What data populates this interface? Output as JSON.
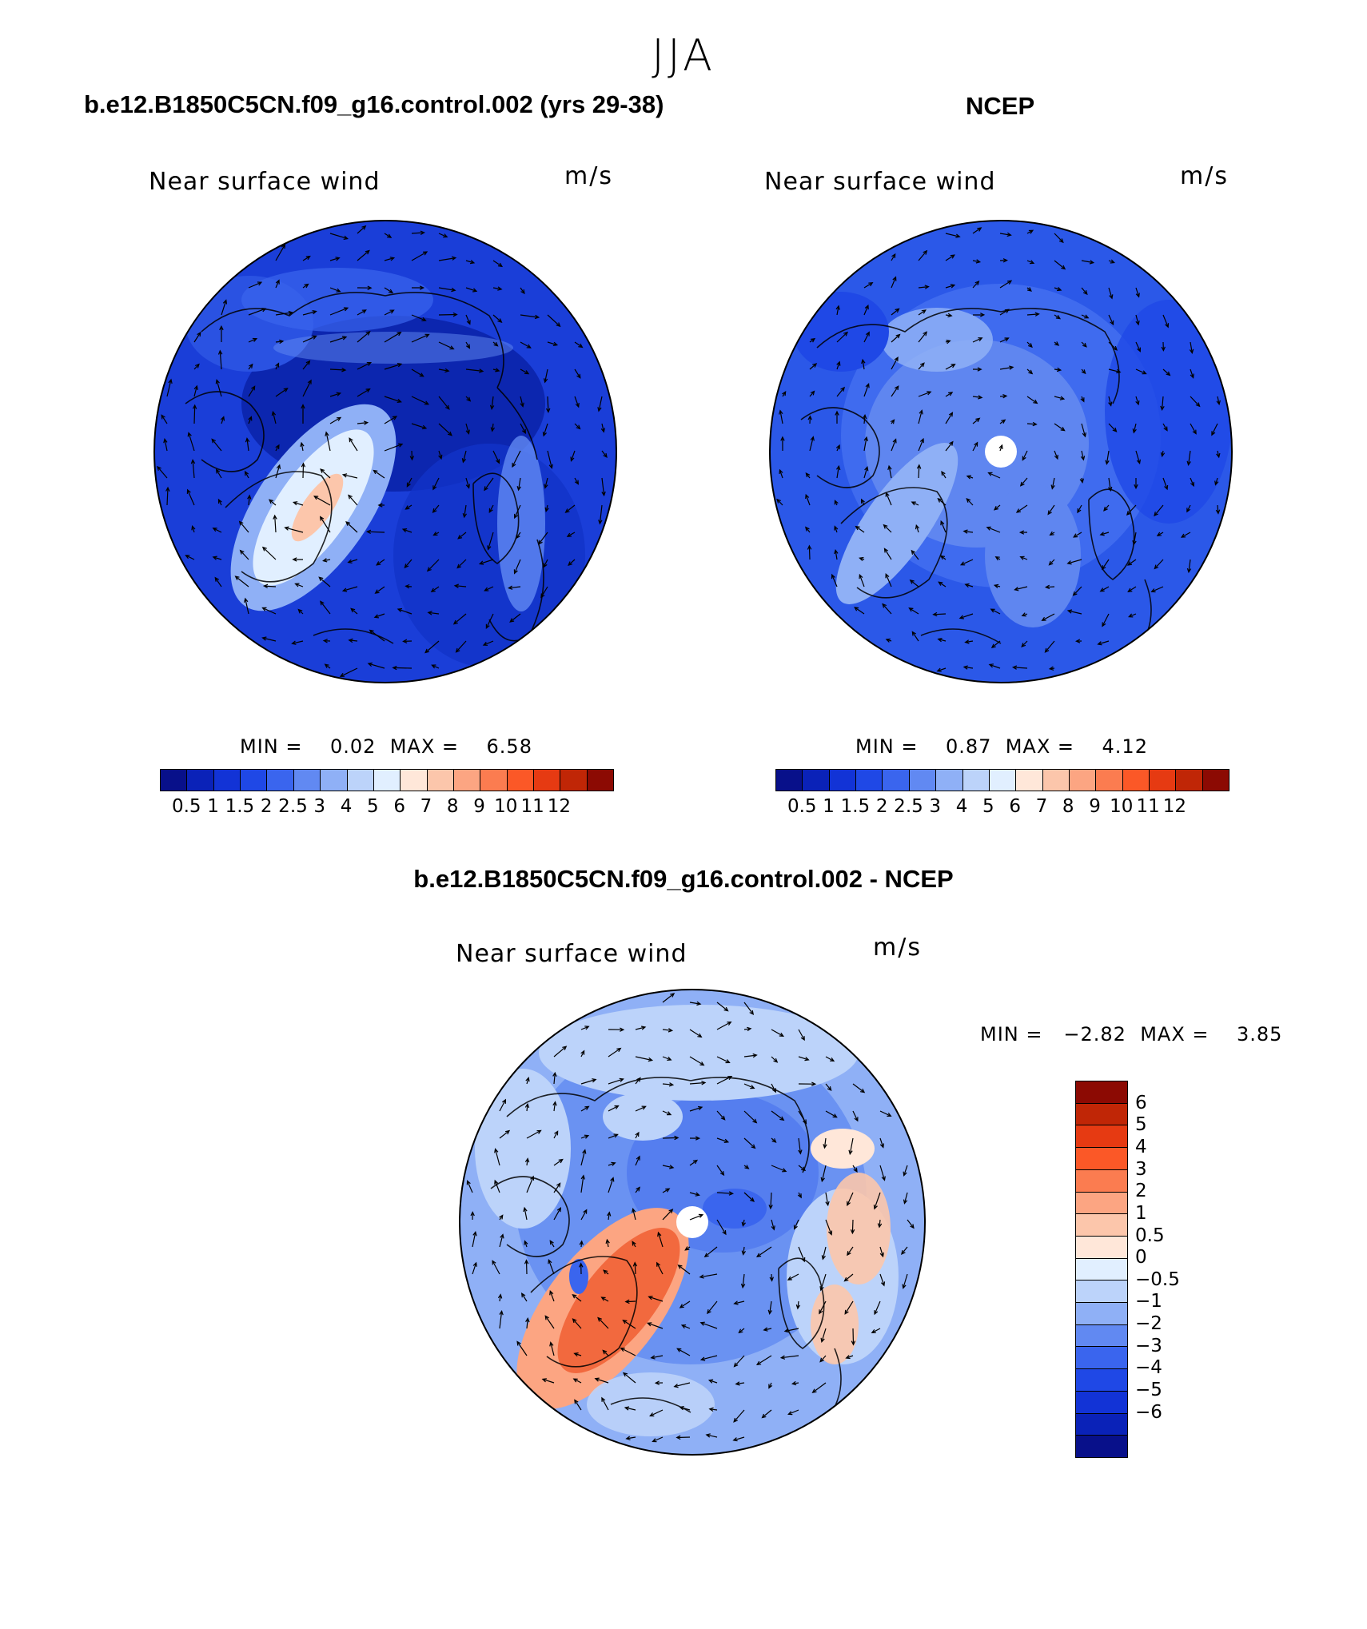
{
  "figure": {
    "title": "JJA"
  },
  "panels": {
    "model": {
      "title": "b.e12.B1850C5CN.f09_g16.control.002 (yrs 29-38)",
      "variable": "Near surface wind",
      "units": "m/s",
      "min_label": "MIN =",
      "min_value": "0.02",
      "max_label": "MAX =",
      "max_value": "6.58"
    },
    "obs": {
      "title": "NCEP",
      "variable": "Near surface wind",
      "units": "m/s",
      "min_label": "MIN =",
      "min_value": "0.87",
      "max_label": "MAX =",
      "max_value": "4.12"
    },
    "diff": {
      "title": "b.e12.B1850C5CN.f09_g16.control.002 - NCEP",
      "variable": "Near surface wind",
      "units": "m/s",
      "min_label": "MIN =",
      "min_value": "−2.82",
      "max_label": "MAX =",
      "max_value": "3.85"
    }
  },
  "colorbars": {
    "wind_speed": {
      "colors": [
        "#08108a",
        "#0a22b8",
        "#1233d6",
        "#1f48e6",
        "#3a65ee",
        "#6189f2",
        "#8fb0f6",
        "#bcd3fa",
        "#e1efff",
        "#ffe7d9",
        "#fcc6ab",
        "#fca582",
        "#fb7c50",
        "#fb5827",
        "#e63a12",
        "#c02606",
        "#8c0a03"
      ],
      "ticks": [
        "0.5",
        "1",
        "1.5",
        "2",
        "2.5",
        "3",
        "4",
        "5",
        "6",
        "7",
        "8",
        "9",
        "10",
        "11",
        "12"
      ]
    },
    "difference": {
      "colors": [
        "#8c0a03",
        "#c02606",
        "#e63a12",
        "#fb5827",
        "#fb7c50",
        "#fca582",
        "#fcc6ab",
        "#ffe7d9",
        "#e1efff",
        "#bcd3fa",
        "#8fb0f6",
        "#6189f2",
        "#3a65ee",
        "#1f48e6",
        "#1233d6",
        "#0a22b8",
        "#08108a"
      ],
      "ticks": [
        "6",
        "5",
        "4",
        "3",
        "2",
        "1",
        "0.5",
        "0",
        "−0.5",
        "−1",
        "−2",
        "−3",
        "−4",
        "−5",
        "−6"
      ]
    }
  },
  "map_colors": {
    "model_base": "#1a3ed8",
    "model_dark": "#0a22a8",
    "obs_base": "#2b58e8",
    "obs_light": "#5f86f0",
    "diff_base": "#6a92f2",
    "diff_light": "#bcd3fa",
    "diff_warm": "#f2693e",
    "diff_peach": "#fcc6ab"
  }
}
